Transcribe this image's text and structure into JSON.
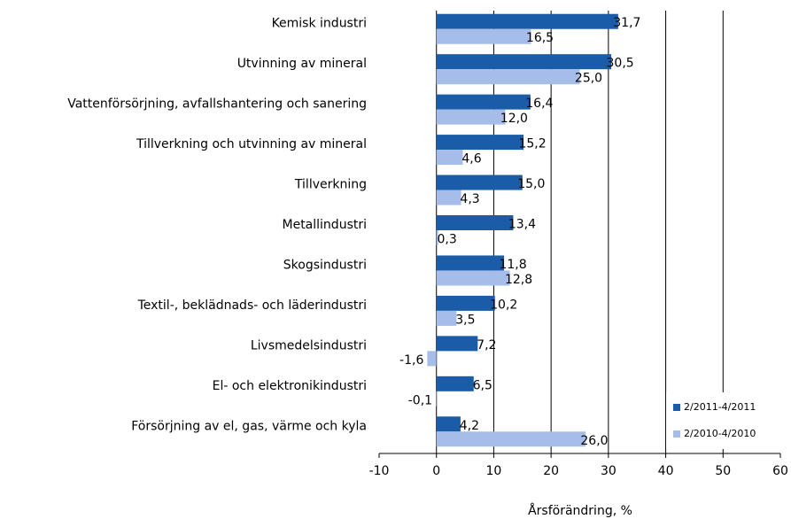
{
  "chart_data": {
    "type": "barh",
    "x_label": "Årsförändring, %",
    "categories": [
      "Kemisk industri",
      "Utvinning av mineral",
      "Vattenförsörjning, avfallshantering och sanering",
      "Tillverkning och utvinning av mineral",
      "Tillverkning",
      "Metallindustri",
      "Skogsindustri",
      "Textil-, beklädnads- och läderindustri",
      "Livsmedelsindustri",
      "El- och elektronikindustri",
      "Försörjning av el, gas, värme och kyla"
    ],
    "series": [
      {
        "name": "2/2011-4/2011",
        "color": "#1a5ca8",
        "values": [
          31.7,
          30.5,
          16.4,
          15.2,
          15.0,
          13.4,
          11.8,
          10.2,
          7.2,
          6.5,
          4.2
        ],
        "value_labels": [
          "31,7",
          "30,5",
          "16,4",
          "15,2",
          "15,0",
          "13,4",
          "11,8",
          "10,2",
          "7,2",
          "6,5",
          "4,2"
        ]
      },
      {
        "name": "2/2010-4/2010",
        "color": "#a7bde9",
        "values": [
          16.5,
          25.0,
          12.0,
          4.6,
          4.3,
          0.3,
          12.8,
          3.5,
          -1.6,
          -0.1,
          26.0
        ],
        "value_labels": [
          "16,5",
          "25,0",
          "12,0",
          "4,6",
          "4,3",
          "0,3",
          "12,8",
          "3,5",
          "-1,6",
          "-0,1",
          "26,0"
        ]
      }
    ],
    "xlim": [
      -10,
      60
    ],
    "xticks": [
      -10,
      0,
      10,
      20,
      30,
      40,
      50,
      60
    ],
    "grid": true,
    "legend": "lower right"
  }
}
